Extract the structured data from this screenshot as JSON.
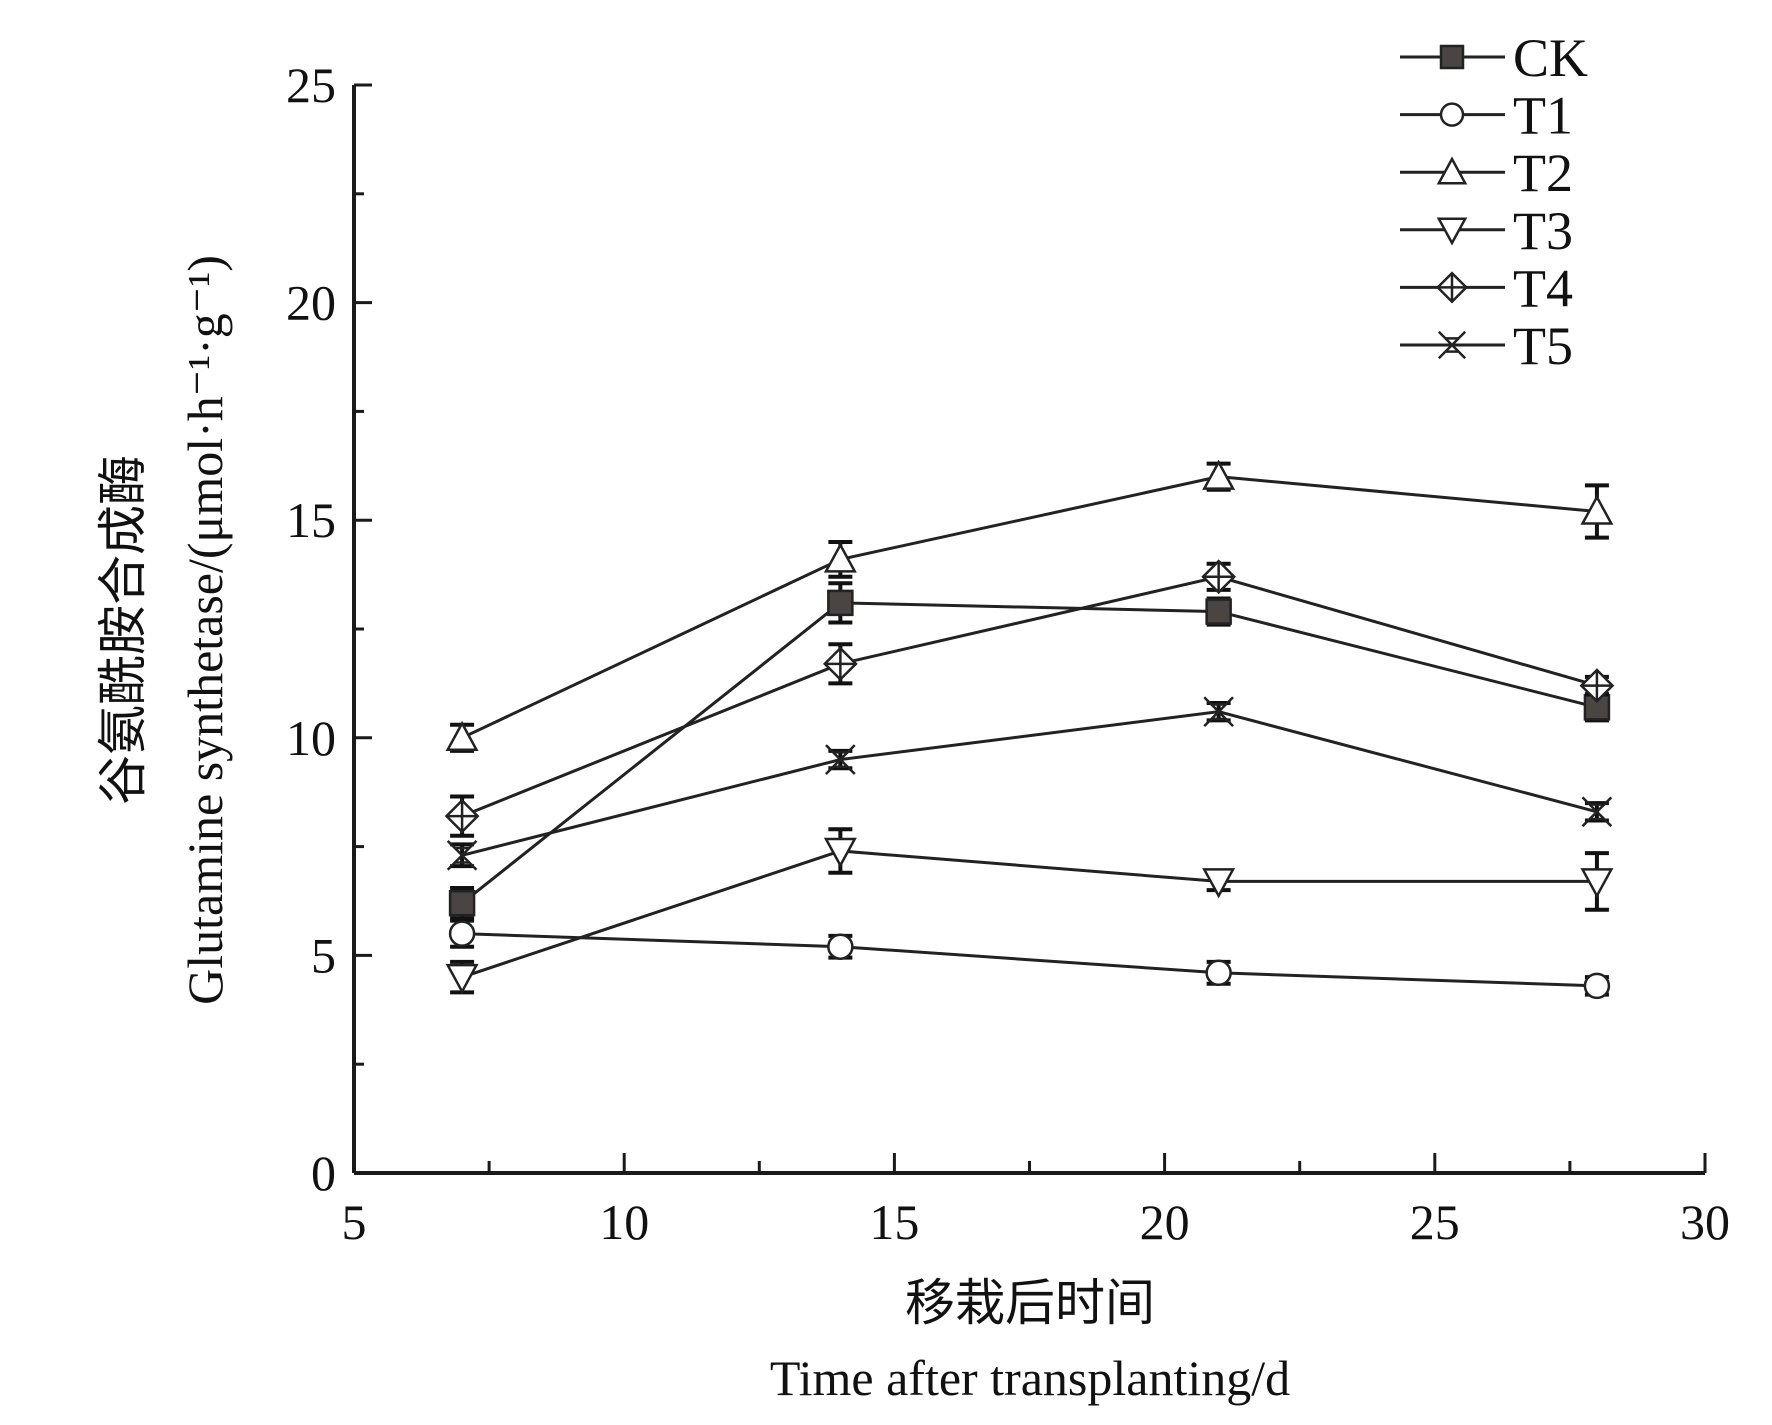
{
  "chart_data": {
    "type": "line",
    "title": "",
    "xlabel_cn": "移栽后时间",
    "xlabel": "Time after transplanting/d",
    "ylabel_cn": "谷氨酰胺合成酶",
    "ylabel": "Glutamine synthetase/(μmol·h⁻¹·g⁻¹)",
    "xlim": [
      5,
      30
    ],
    "ylim": [
      0,
      25
    ],
    "x_major_ticks": [
      5,
      10,
      15,
      20,
      25,
      30
    ],
    "x_minor_step": 2.5,
    "y_major_ticks": [
      0,
      5,
      10,
      15,
      20,
      25
    ],
    "y_minor_step": 2.5,
    "grid": false,
    "legend_position": "top-right",
    "x": [
      7,
      14,
      21,
      28
    ],
    "series": [
      {
        "name": "CK",
        "marker": "square-filled",
        "values": [
          6.2,
          13.1,
          12.9,
          10.7
        ],
        "errors": [
          0.35,
          0.45,
          0.3,
          0.3
        ]
      },
      {
        "name": "T1",
        "marker": "circle-open",
        "values": [
          5.5,
          5.2,
          4.6,
          4.3
        ],
        "errors": [
          0.3,
          0.25,
          0.25,
          0.2
        ]
      },
      {
        "name": "T2",
        "marker": "triangle-up-open",
        "values": [
          10.0,
          14.1,
          16.0,
          15.2
        ],
        "errors": [
          0.3,
          0.4,
          0.3,
          0.6
        ]
      },
      {
        "name": "T3",
        "marker": "triangle-down-open",
        "values": [
          4.5,
          7.4,
          6.7,
          6.7
        ],
        "errors": [
          0.35,
          0.5,
          0.2,
          0.65
        ]
      },
      {
        "name": "T4",
        "marker": "diamond-cross",
        "values": [
          8.2,
          11.7,
          13.7,
          11.2
        ],
        "errors": [
          0.45,
          0.45,
          0.3,
          0.2
        ]
      },
      {
        "name": "T5",
        "marker": "x-cross",
        "values": [
          7.3,
          9.5,
          10.6,
          8.3
        ],
        "errors": [
          0.25,
          0.2,
          0.2,
          0.2
        ]
      }
    ]
  }
}
